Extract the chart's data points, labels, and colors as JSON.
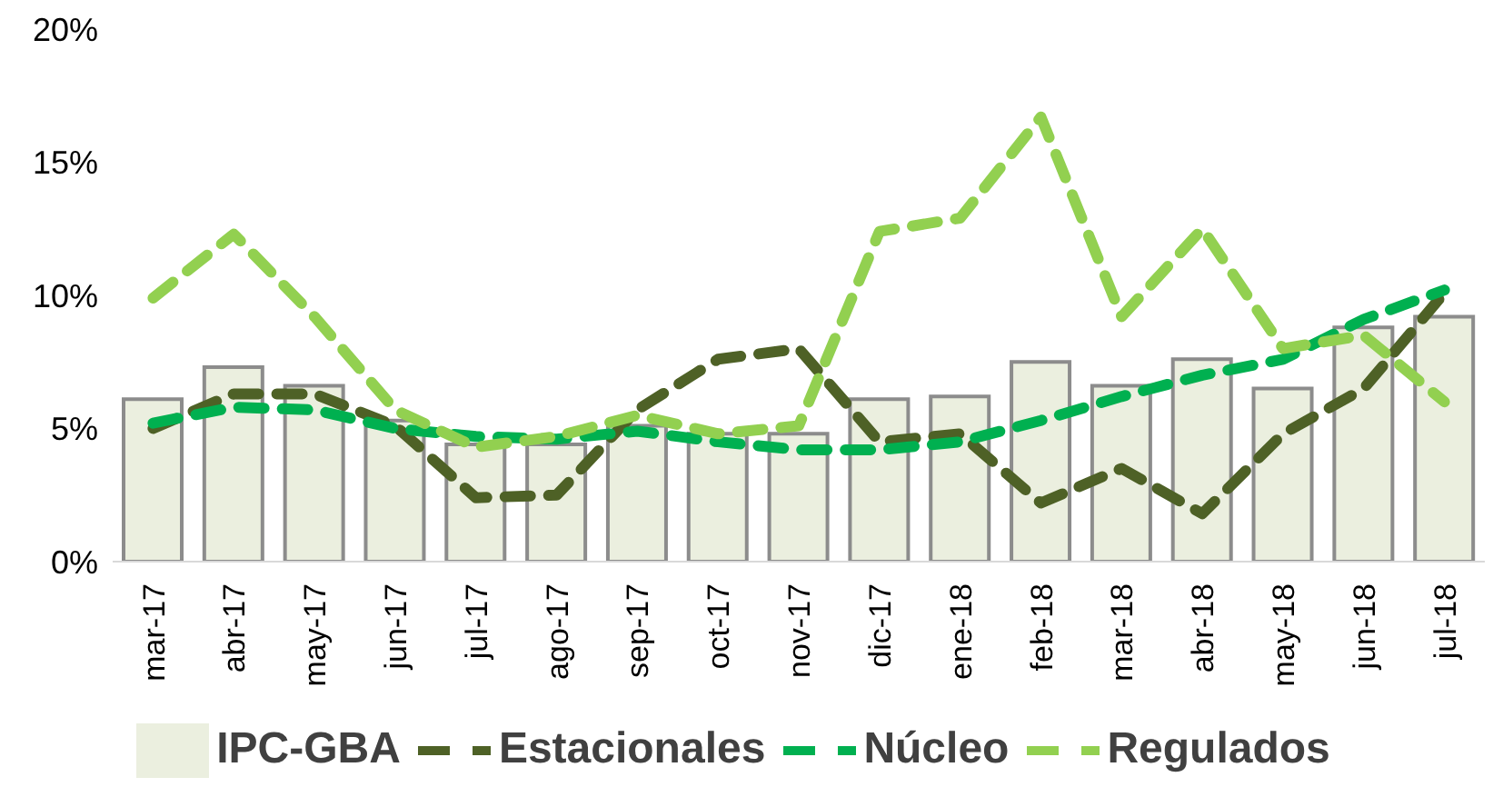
{
  "chart_data": {
    "type": "bar",
    "categories": [
      "mar-17",
      "abr-17",
      "may-17",
      "jun-17",
      "jul-17",
      "ago-17",
      "sep-17",
      "oct-17",
      "nov-17",
      "dic-17",
      "ene-18",
      "feb-18",
      "mar-18",
      "abr-18",
      "may-18",
      "jun-18",
      "jul-18"
    ],
    "series": [
      {
        "name": "IPC-GBA",
        "color": "#ebefdf",
        "values": [
          6.1,
          7.3,
          6.6,
          5.3,
          4.4,
          4.4,
          5.1,
          4.8,
          4.8,
          6.1,
          6.2,
          7.5,
          6.6,
          7.6,
          6.5,
          8.8,
          9.2
        ]
      },
      {
        "name": "Estacionales",
        "type": "line",
        "color": "#4e6126",
        "line_style": "dashed",
        "values": [
          5.0,
          6.3,
          6.3,
          5.1,
          2.4,
          2.5,
          5.7,
          7.6,
          8.0,
          4.5,
          4.8,
          2.2,
          3.5,
          1.8,
          4.8,
          6.5,
          10.1
        ]
      },
      {
        "name": "Núcleo",
        "type": "line",
        "color": "#00b050",
        "line_style": "dashed",
        "values": [
          5.2,
          5.8,
          5.7,
          5.0,
          4.7,
          4.6,
          4.9,
          4.5,
          4.2,
          4.2,
          4.5,
          5.3,
          6.2,
          7.0,
          7.6,
          9.1,
          10.2
        ]
      },
      {
        "name": "Regulados",
        "type": "line",
        "color": "#92d050",
        "line_style": "dashed",
        "values": [
          9.9,
          12.3,
          9.2,
          5.7,
          4.3,
          4.7,
          5.5,
          4.8,
          5.1,
          12.4,
          12.9,
          16.7,
          9.2,
          12.5,
          8.0,
          8.5,
          6.0
        ]
      }
    ],
    "ylim": [
      0,
      20
    ],
    "yticks": [
      {
        "value": 0,
        "label": "0%"
      },
      {
        "value": 5,
        "label": "5%"
      },
      {
        "value": 10,
        "label": "10%"
      },
      {
        "value": 15,
        "label": "15%"
      },
      {
        "value": 20,
        "label": "20%"
      }
    ],
    "legend": "bottom",
    "marker": "none"
  }
}
